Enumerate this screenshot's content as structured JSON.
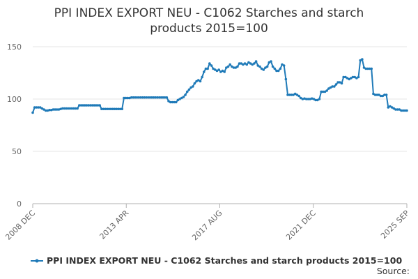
{
  "chart_data": {
    "type": "line",
    "title": "PPI INDEX EXPORT NEU - C1062 Starches and starch products 2015=100",
    "title_lines": [
      "PPI INDEX EXPORT NEU - C1062 Starches and starch",
      "products 2015=100"
    ],
    "xlabel": "",
    "ylabel": "",
    "ylim": [
      0,
      150
    ],
    "yticks": [
      0,
      50,
      100,
      150
    ],
    "xlim": [
      "2008-12",
      "2025-09"
    ],
    "xtick_labels": [
      "2008 DEC",
      "2013 APR",
      "2017 AUG",
      "2021 DEC",
      "2025 SEP"
    ],
    "grid": true,
    "legend_position": "bottom",
    "series": [
      {
        "name": "PPI INDEX EXPORT NEU - C1062 Starches and starch products 2015=100",
        "color": "#1f7ab8",
        "points": [
          [
            "2008-12",
            87
          ],
          [
            "2009-01",
            92
          ],
          [
            "2009-02",
            92
          ],
          [
            "2009-03",
            92
          ],
          [
            "2009-04",
            92
          ],
          [
            "2009-05",
            91
          ],
          [
            "2009-06",
            90
          ],
          [
            "2009-07",
            89
          ],
          [
            "2009-08",
            89
          ],
          [
            "2009-09",
            89.5
          ],
          [
            "2009-10",
            89.5
          ],
          [
            "2009-11",
            90
          ],
          [
            "2009-12",
            90
          ],
          [
            "2010-01",
            90
          ],
          [
            "2010-02",
            90
          ],
          [
            "2010-03",
            90.5
          ],
          [
            "2010-04",
            91
          ],
          [
            "2010-05",
            91
          ],
          [
            "2010-06",
            91
          ],
          [
            "2010-07",
            91
          ],
          [
            "2010-08",
            91
          ],
          [
            "2010-09",
            91
          ],
          [
            "2010-10",
            91
          ],
          [
            "2010-11",
            91
          ],
          [
            "2010-12",
            91
          ],
          [
            "2011-01",
            94
          ],
          [
            "2011-02",
            94
          ],
          [
            "2011-03",
            94
          ],
          [
            "2011-04",
            94
          ],
          [
            "2011-05",
            94
          ],
          [
            "2011-06",
            94
          ],
          [
            "2011-07",
            94
          ],
          [
            "2011-08",
            94
          ],
          [
            "2011-09",
            94
          ],
          [
            "2011-10",
            94
          ],
          [
            "2011-11",
            94
          ],
          [
            "2011-12",
            94
          ],
          [
            "2012-01",
            90.5
          ],
          [
            "2012-02",
            90.5
          ],
          [
            "2012-03",
            90.5
          ],
          [
            "2012-04",
            90.5
          ],
          [
            "2012-05",
            90.5
          ],
          [
            "2012-06",
            90.5
          ],
          [
            "2012-07",
            90.5
          ],
          [
            "2012-08",
            90.5
          ],
          [
            "2012-09",
            90.5
          ],
          [
            "2012-10",
            90.5
          ],
          [
            "2012-11",
            90.5
          ],
          [
            "2012-12",
            90.5
          ],
          [
            "2013-01",
            101
          ],
          [
            "2013-02",
            101
          ],
          [
            "2013-03",
            101
          ],
          [
            "2013-04",
            101
          ],
          [
            "2013-05",
            101.5
          ],
          [
            "2013-06",
            101.5
          ],
          [
            "2013-07",
            101.5
          ],
          [
            "2013-08",
            101.5
          ],
          [
            "2013-09",
            101.5
          ],
          [
            "2013-10",
            101.5
          ],
          [
            "2013-11",
            101.5
          ],
          [
            "2013-12",
            101.5
          ],
          [
            "2014-01",
            101.5
          ],
          [
            "2014-02",
            101.5
          ],
          [
            "2014-03",
            101.5
          ],
          [
            "2014-04",
            101.5
          ],
          [
            "2014-05",
            101.5
          ],
          [
            "2014-06",
            101.5
          ],
          [
            "2014-07",
            101.5
          ],
          [
            "2014-08",
            101.5
          ],
          [
            "2014-09",
            101.5
          ],
          [
            "2014-10",
            101.5
          ],
          [
            "2014-11",
            101.5
          ],
          [
            "2014-12",
            101.5
          ],
          [
            "2015-01",
            98
          ],
          [
            "2015-02",
            97
          ],
          [
            "2015-03",
            97
          ],
          [
            "2015-04",
            97
          ],
          [
            "2015-05",
            97
          ],
          [
            "2015-06",
            99
          ],
          [
            "2015-07",
            100
          ],
          [
            "2015-08",
            101
          ],
          [
            "2015-09",
            102
          ],
          [
            "2015-10",
            104
          ],
          [
            "2015-11",
            107
          ],
          [
            "2015-12",
            109
          ],
          [
            "2016-01",
            111
          ],
          [
            "2016-02",
            112
          ],
          [
            "2016-03",
            115
          ],
          [
            "2016-04",
            117
          ],
          [
            "2016-05",
            118
          ],
          [
            "2016-06",
            117
          ],
          [
            "2016-07",
            121
          ],
          [
            "2016-08",
            126
          ],
          [
            "2016-09",
            129
          ],
          [
            "2016-10",
            129
          ],
          [
            "2016-11",
            134
          ],
          [
            "2016-12",
            132
          ],
          [
            "2017-01",
            129
          ],
          [
            "2017-02",
            128
          ],
          [
            "2017-03",
            127
          ],
          [
            "2017-04",
            128
          ],
          [
            "2017-05",
            126
          ],
          [
            "2017-06",
            127
          ],
          [
            "2017-07",
            126
          ],
          [
            "2017-08",
            130
          ],
          [
            "2017-09",
            131
          ],
          [
            "2017-10",
            133
          ],
          [
            "2017-11",
            131
          ],
          [
            "2017-12",
            130
          ],
          [
            "2018-01",
            130
          ],
          [
            "2018-02",
            131
          ],
          [
            "2018-03",
            134
          ],
          [
            "2018-04",
            134
          ],
          [
            "2018-05",
            133
          ],
          [
            "2018-06",
            134
          ],
          [
            "2018-07",
            133
          ],
          [
            "2018-08",
            135
          ],
          [
            "2018-09",
            134
          ],
          [
            "2018-10",
            133
          ],
          [
            "2018-11",
            134
          ],
          [
            "2018-12",
            136
          ],
          [
            "2019-01",
            132
          ],
          [
            "2019-02",
            131
          ],
          [
            "2019-03",
            129
          ],
          [
            "2019-04",
            128
          ],
          [
            "2019-05",
            130
          ],
          [
            "2019-06",
            131
          ],
          [
            "2019-07",
            135
          ],
          [
            "2019-08",
            136
          ],
          [
            "2019-09",
            131
          ],
          [
            "2019-10",
            129
          ],
          [
            "2019-11",
            127
          ],
          [
            "2019-12",
            127
          ],
          [
            "2020-01",
            129
          ],
          [
            "2020-02",
            133
          ],
          [
            "2020-03",
            132
          ],
          [
            "2020-04",
            119
          ],
          [
            "2020-05",
            104
          ],
          [
            "2020-06",
            104
          ],
          [
            "2020-07",
            104
          ],
          [
            "2020-08",
            104
          ],
          [
            "2020-09",
            105
          ],
          [
            "2020-10",
            104
          ],
          [
            "2020-11",
            103
          ],
          [
            "2020-12",
            101
          ],
          [
            "2021-01",
            100
          ],
          [
            "2021-02",
            100.5
          ],
          [
            "2021-03",
            100
          ],
          [
            "2021-04",
            100
          ],
          [
            "2021-05",
            100
          ],
          [
            "2021-06",
            100.5
          ],
          [
            "2021-07",
            100
          ],
          [
            "2021-08",
            99
          ],
          [
            "2021-09",
            99
          ],
          [
            "2021-10",
            100
          ],
          [
            "2021-11",
            107
          ],
          [
            "2021-12",
            107
          ],
          [
            "2022-01",
            107
          ],
          [
            "2022-02",
            108
          ],
          [
            "2022-03",
            110
          ],
          [
            "2022-04",
            111
          ],
          [
            "2022-05",
            112
          ],
          [
            "2022-06",
            112
          ],
          [
            "2022-07",
            114
          ],
          [
            "2022-08",
            116
          ],
          [
            "2022-09",
            116
          ],
          [
            "2022-10",
            115
          ],
          [
            "2022-11",
            121
          ],
          [
            "2022-12",
            121
          ],
          [
            "2023-01",
            120
          ],
          [
            "2023-02",
            119
          ],
          [
            "2023-03",
            120
          ],
          [
            "2023-04",
            121
          ],
          [
            "2023-05",
            121
          ],
          [
            "2023-06",
            120
          ],
          [
            "2023-07",
            121
          ],
          [
            "2023-08",
            137
          ],
          [
            "2023-09",
            138
          ],
          [
            "2023-10",
            130
          ],
          [
            "2023-11",
            129
          ],
          [
            "2023-12",
            129
          ],
          [
            "2024-01",
            129
          ],
          [
            "2024-02",
            129
          ],
          [
            "2024-03",
            105
          ],
          [
            "2024-04",
            104
          ],
          [
            "2024-05",
            104
          ],
          [
            "2024-06",
            104
          ],
          [
            "2024-07",
            103
          ],
          [
            "2024-08",
            103
          ],
          [
            "2024-09",
            104
          ],
          [
            "2024-10",
            104
          ],
          [
            "2024-11",
            92
          ],
          [
            "2024-12",
            93
          ],
          [
            "2025-01",
            92
          ],
          [
            "2025-02",
            91
          ],
          [
            "2025-03",
            90
          ],
          [
            "2025-04",
            90
          ],
          [
            "2025-05",
            90
          ],
          [
            "2025-06",
            89
          ],
          [
            "2025-07",
            89
          ],
          [
            "2025-08",
            89
          ],
          [
            "2025-09",
            89
          ]
        ]
      }
    ],
    "source": "Source:"
  }
}
